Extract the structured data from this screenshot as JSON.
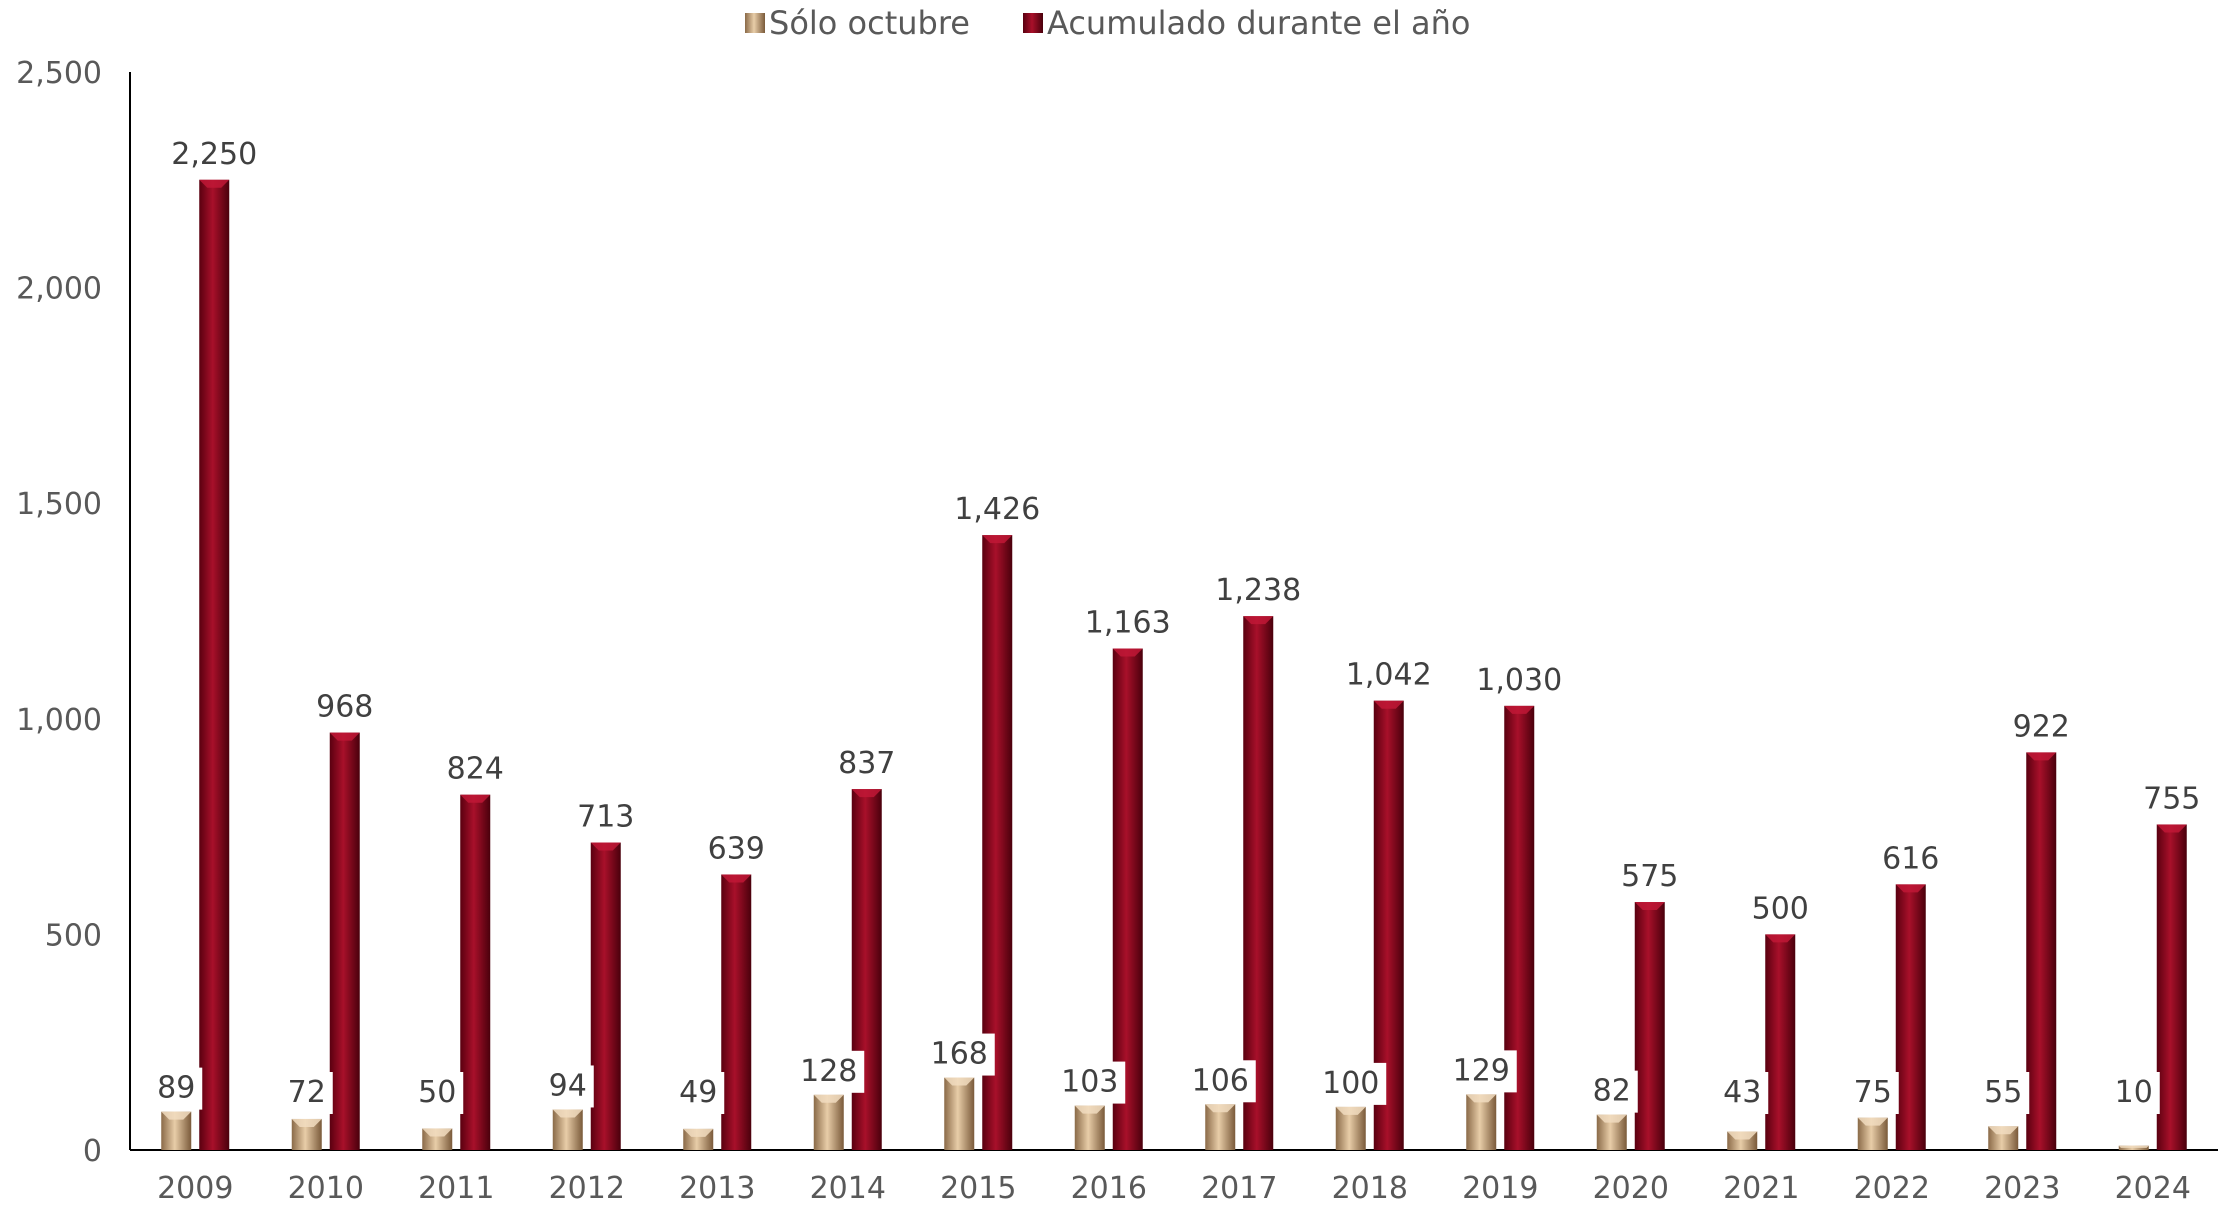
{
  "chart_data": {
    "type": "bar",
    "title": "",
    "xlabel": "",
    "ylabel": "",
    "ylim": [
      0,
      2500
    ],
    "yticks": [
      0,
      500,
      1000,
      1500,
      2000,
      2500
    ],
    "ytick_labels": [
      "0",
      "500",
      "1,000",
      "1,500",
      "2,000",
      "2,500"
    ],
    "grid": false,
    "legend_position": "top-center",
    "categories": [
      "2009",
      "2010",
      "2011",
      "2012",
      "2013",
      "2014",
      "2015",
      "2016",
      "2017",
      "2018",
      "2019",
      "2020",
      "2021",
      "2022",
      "2023",
      "2024"
    ],
    "series": [
      {
        "name": "Sólo octubre",
        "color": "#c8a47c",
        "values": [
          89,
          72,
          50,
          94,
          49,
          128,
          168,
          103,
          106,
          100,
          129,
          82,
          43,
          75,
          55,
          10
        ],
        "labels": [
          "89",
          "72",
          "50",
          "94",
          "49",
          "128",
          "168",
          "103",
          "106",
          "100",
          "129",
          "82",
          "43",
          "75",
          "55",
          "10"
        ]
      },
      {
        "name": "Acumulado durante el año",
        "color": "#8b0a1e",
        "values": [
          2250,
          968,
          824,
          713,
          639,
          837,
          1426,
          1163,
          1238,
          1042,
          1030,
          575,
          500,
          616,
          922,
          755
        ],
        "labels": [
          "2,250",
          "968",
          "824",
          "713",
          "639",
          "837",
          "1,426",
          "1,163",
          "1,238",
          "1,042",
          "1,030",
          "575",
          "500",
          "616",
          "922",
          "755"
        ]
      }
    ]
  }
}
